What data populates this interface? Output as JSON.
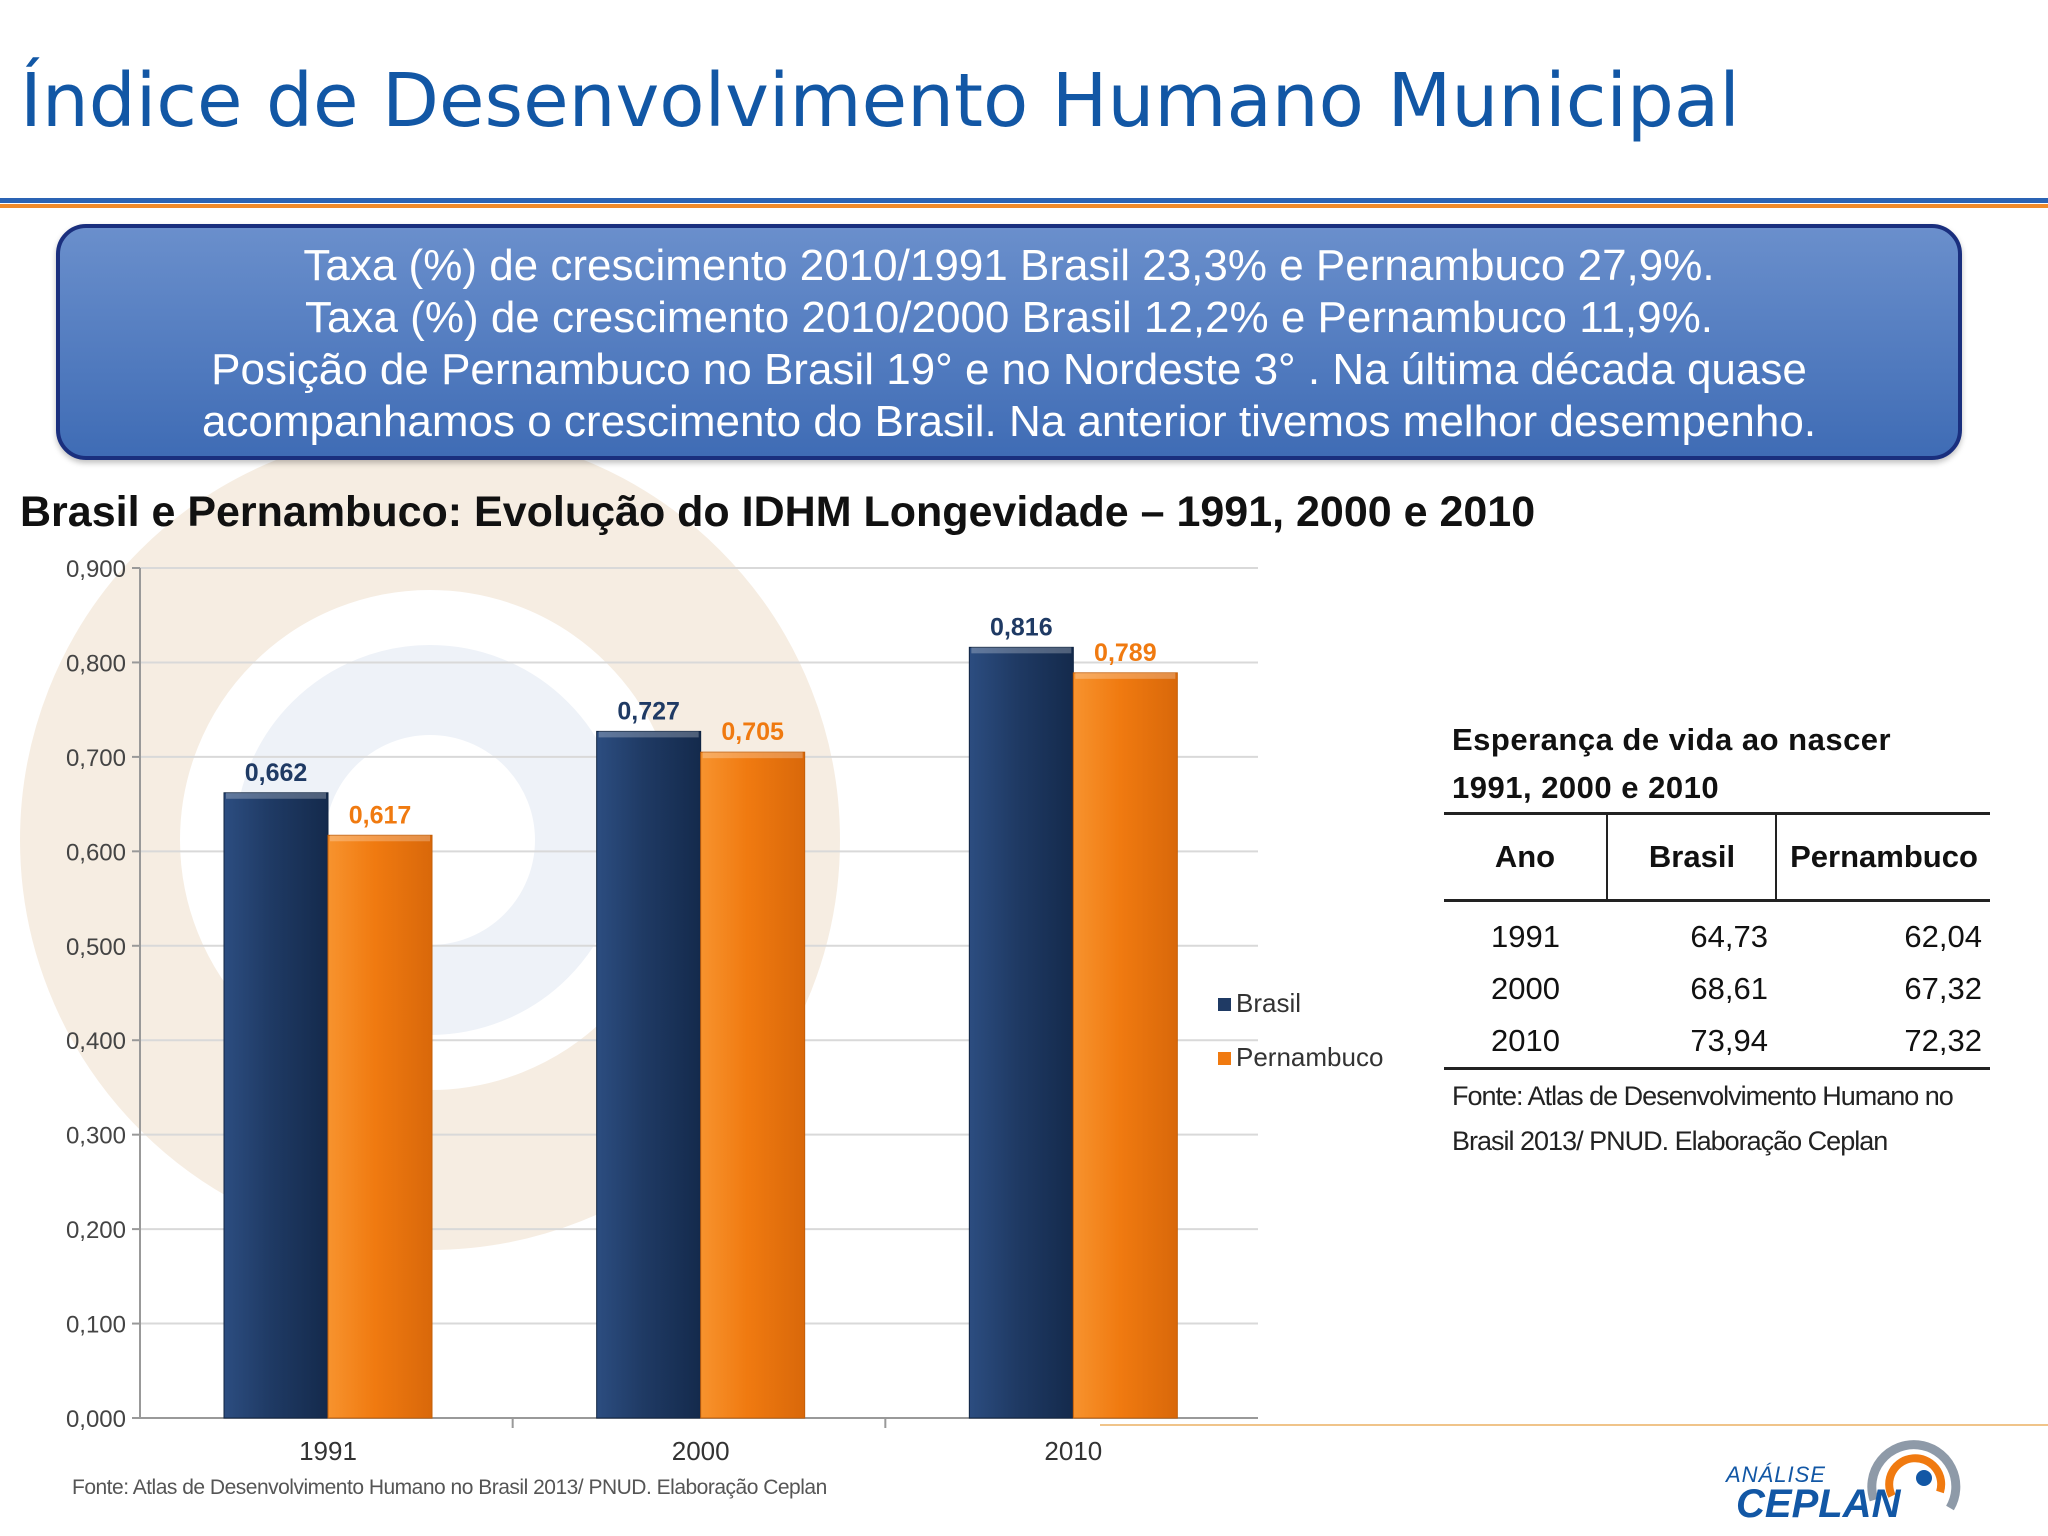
{
  "title": "Índice de Desenvolvimento Humano Municipal",
  "callout": {
    "lines": [
      "Taxa (%) de crescimento 2010/1991 Brasil 23,3% e Pernambuco 27,9%.",
      "Taxa (%) de crescimento 2010/2000 Brasil 12,2% e Pernambuco 11,9%.",
      "Posição de Pernambuco no Brasil 19° e no Nordeste 3° . Na última década quase",
      "acompanhamos o crescimento do Brasil. Na anterior tivemos melhor desempenho."
    ]
  },
  "chart_heading": "Brasil e Pernambuco: Evolução do IDHM Longevidade – 1991, 2000 e 2010",
  "chart_data": {
    "type": "bar",
    "title": "",
    "xlabel": "",
    "ylabel": "",
    "categories": [
      "1991",
      "2000",
      "2010"
    ],
    "series": [
      {
        "name": "Brasil",
        "values": [
          0.662,
          0.727,
          0.816
        ],
        "labels": [
          "0,662",
          "0,727",
          "0,816"
        ]
      },
      {
        "name": "Pernambuco",
        "values": [
          0.617,
          0.705,
          0.789
        ],
        "labels": [
          "0,617",
          "0,705",
          "0,789"
        ]
      }
    ],
    "ylim": [
      0,
      0.9
    ],
    "yticks": [
      0,
      0.1,
      0.2,
      0.3,
      0.4,
      0.5,
      0.6,
      0.7,
      0.8,
      0.9
    ],
    "ytick_labels": [
      "0,000",
      "0,100",
      "0,200",
      "0,300",
      "0,400",
      "0,500",
      "0,600",
      "0,700",
      "0,800",
      "0,900"
    ],
    "grid": true,
    "legend": "right",
    "colors": {
      "Brasil": "#1f3a64",
      "Pernambuco": "#f07a10"
    }
  },
  "chart_source": "Fonte: Atlas de Desenvolvimento Humano no Brasil 2013/ PNUD. Elaboração Ceplan",
  "table": {
    "caption_line1": "Esperança de vida ao nascer",
    "caption_line2": "1991, 2000 e 2010",
    "headers": {
      "ano": "Ano",
      "brasil": "Brasil",
      "pernambuco": "Pernambuco"
    },
    "rows": [
      {
        "ano": "1991",
        "brasil": "64,73",
        "pernambuco": "62,04"
      },
      {
        "ano": "2000",
        "brasil": "68,61",
        "pernambuco": "67,32"
      },
      {
        "ano": "2010",
        "brasil": "73,94",
        "pernambuco": "72,32"
      }
    ],
    "source_line1": "Fonte: Atlas de Desenvolvimento Humano no",
    "source_line2": "Brasil 2013/ PNUD. Elaboração Ceplan"
  },
  "logo": {
    "line1": "ANÁLISE",
    "line2": "CEPLAN"
  }
}
